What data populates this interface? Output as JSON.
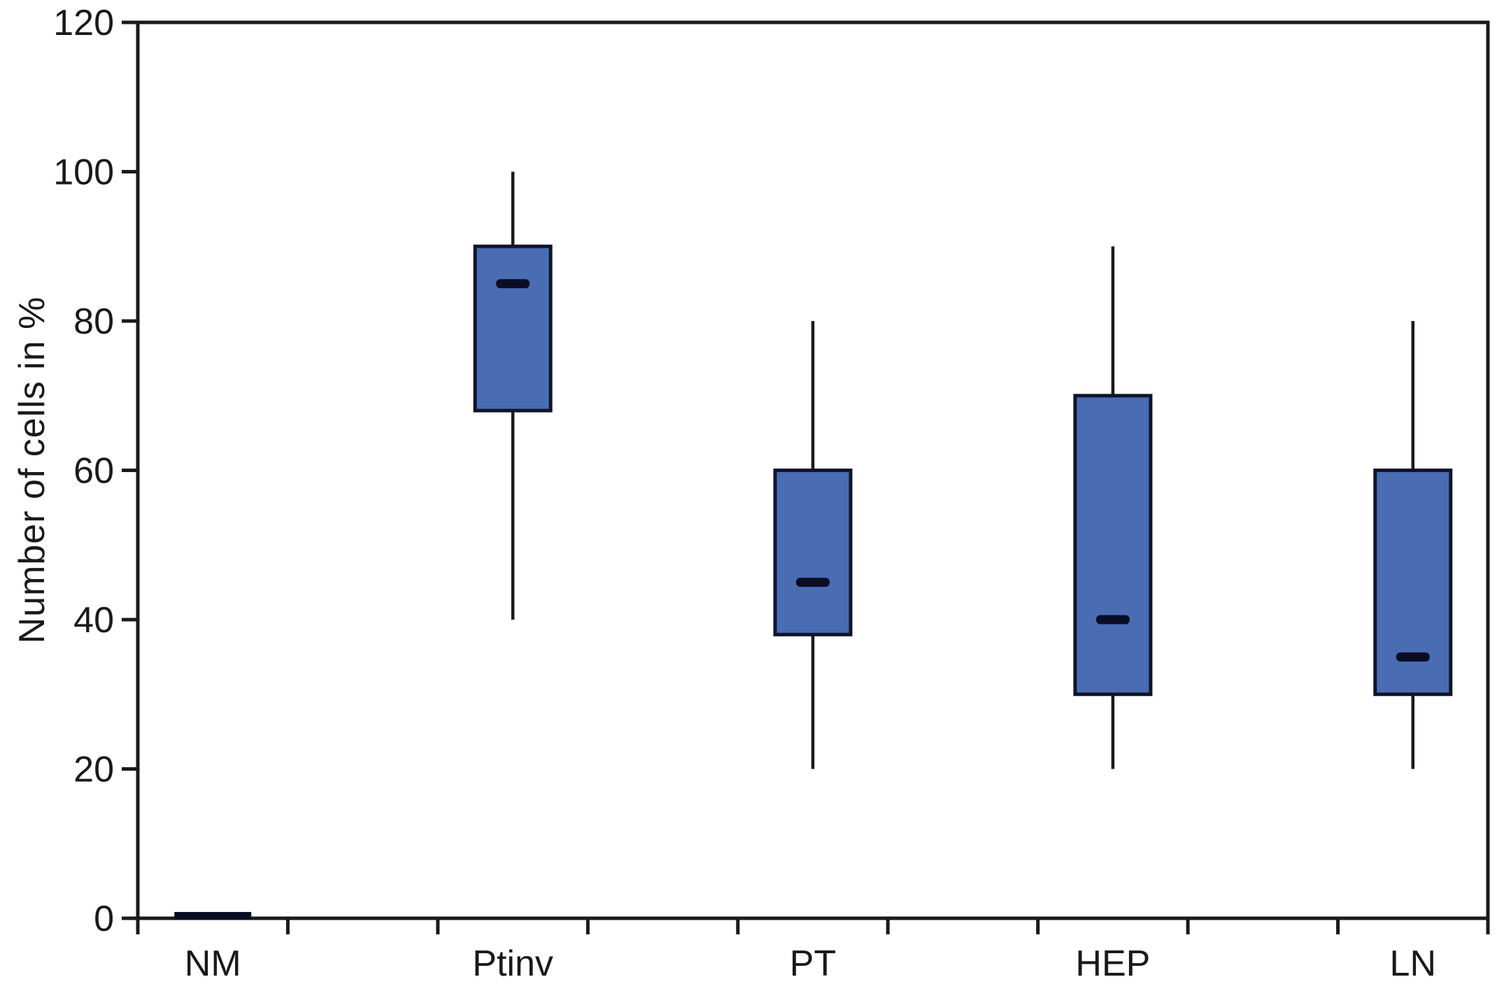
{
  "figure": {
    "background": "#ffffff",
    "axis_color": "#1a1a1a",
    "text_color": "#1a1a1a"
  },
  "chart_data": {
    "type": "boxplot",
    "title": "",
    "xlabel": "",
    "ylabel": "Number of cells in %",
    "ylim": [
      0,
      120
    ],
    "yticks": [
      0,
      20,
      40,
      60,
      80,
      100,
      120
    ],
    "grid": false,
    "frame": true,
    "legend": null,
    "box_fill": "#4a6cb2",
    "box_edge": "#10142c",
    "median_color": "#0a0e24",
    "whisker_color": "#1a1a1a",
    "categories": [
      "NM",
      "Ptinv",
      "PT",
      "HEP",
      "LN"
    ],
    "series": [
      {
        "label": "NM",
        "min": 0,
        "q1": 0,
        "median": 0,
        "q3": 0,
        "max": 0
      },
      {
        "label": "Ptinv",
        "min": 40,
        "q1": 68,
        "median": 85,
        "q3": 90,
        "max": 100
      },
      {
        "label": "PT",
        "min": 20,
        "q1": 38,
        "median": 45,
        "q3": 60,
        "max": 80
      },
      {
        "label": "HEP",
        "min": 20,
        "q1": 30,
        "median": 40,
        "q3": 70,
        "max": 90
      },
      {
        "label": "LN",
        "min": 20,
        "q1": 30,
        "median": 35,
        "q3": 60,
        "max": 80
      }
    ]
  }
}
